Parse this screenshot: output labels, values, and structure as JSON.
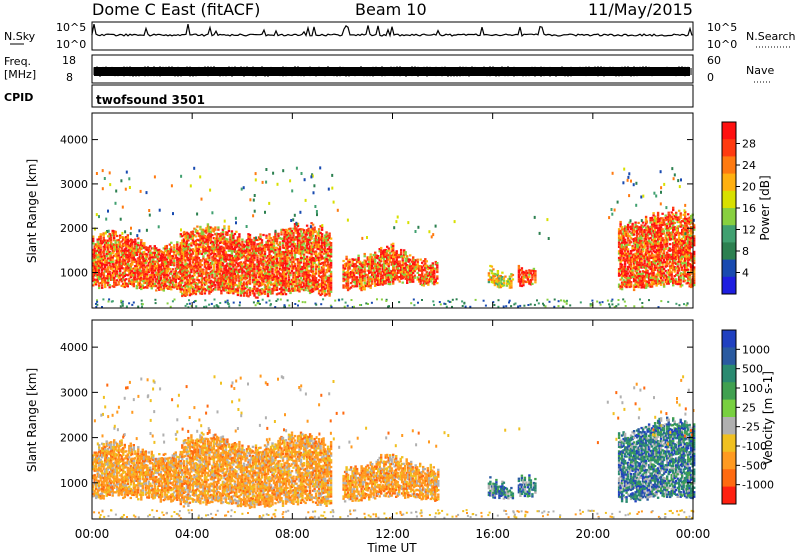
{
  "header": {
    "title": "Dome C East (fitACF)",
    "beam": "Beam 10",
    "date": "11/May/2015"
  },
  "panels": {
    "nsky": {
      "label": "N.Sky",
      "ticks": [
        "10^5",
        "10^0"
      ],
      "right_ticks": [
        "10^5",
        "10^0"
      ],
      "right_label": "N.Search"
    },
    "freq": {
      "label_top": "Freq.",
      "label_bottom": "[MHz]",
      "ticks": [
        "18",
        "8"
      ],
      "right_ticks": [
        "60",
        "0"
      ],
      "right_label": "Nave"
    },
    "cpid": {
      "label": "CPID",
      "value": "twofsound 3501"
    }
  },
  "power_scale": {
    "label": "Power [dB]",
    "ticks": [
      "28",
      "24",
      "20",
      "16",
      "12",
      "8",
      "4"
    ],
    "colors": [
      "#ff1010",
      "#ff3a10",
      "#ff7a10",
      "#ffb010",
      "#d8e000",
      "#88d040",
      "#40a070",
      "#2c8050",
      "#184ab0",
      "#1e1ee0"
    ]
  },
  "velocity_scale": {
    "label": "Velocity [m s-1]",
    "ticks": [
      "1000",
      "500",
      "100",
      "25",
      "-25",
      "-100",
      "-500",
      "-1000"
    ],
    "colors": [
      "#2040c0",
      "#2a5aa0",
      "#2a8a70",
      "#40a050",
      "#78d040",
      "#b0b0b0",
      "#f0c020",
      "#ff9a20",
      "#ff6a10",
      "#ff2010"
    ]
  },
  "chart_data": [
    {
      "type": "heatmap",
      "quantity": "power",
      "ylabel": "Slant Range [km]",
      "yticks": [
        1000,
        2000,
        3000,
        4000
      ],
      "ylim": [
        200,
        4600
      ],
      "xlim_hours": [
        0,
        24
      ],
      "regions": [
        {
          "t0": 0.0,
          "t1": 3.5,
          "r0": 600,
          "r1": 1800,
          "level": "high"
        },
        {
          "t0": 3.5,
          "t1": 9.5,
          "r0": 450,
          "r1": 2000,
          "level": "high"
        },
        {
          "t0": 10.0,
          "t1": 12.0,
          "r0": 600,
          "r1": 1500,
          "level": "high"
        },
        {
          "t0": 12.0,
          "t1": 13.8,
          "r0": 700,
          "r1": 1400,
          "level": "high"
        },
        {
          "t0": 15.8,
          "t1": 16.8,
          "r0": 600,
          "r1": 1000,
          "level": "medium"
        },
        {
          "t0": 17.0,
          "t1": 17.7,
          "r0": 700,
          "r1": 1300,
          "level": "high"
        },
        {
          "t0": 21.0,
          "t1": 24.0,
          "r0": 600,
          "r1": 2300,
          "level": "high"
        }
      ]
    },
    {
      "type": "heatmap",
      "quantity": "velocity",
      "ylabel": "Slant Range [km]",
      "yticks": [
        1000,
        2000,
        3000,
        4000
      ],
      "ylim": [
        200,
        4600
      ],
      "xlim_hours": [
        0,
        24
      ],
      "regions": [
        {
          "t0": 0.0,
          "t1": 3.5,
          "r0": 600,
          "r1": 1800,
          "level": "negative"
        },
        {
          "t0": 3.5,
          "t1": 9.5,
          "r0": 450,
          "r1": 2000,
          "level": "negative"
        },
        {
          "t0": 10.0,
          "t1": 13.8,
          "r0": 600,
          "r1": 1500,
          "level": "negative"
        },
        {
          "t0": 15.8,
          "t1": 16.8,
          "r0": 600,
          "r1": 1000,
          "level": "positive"
        },
        {
          "t0": 17.0,
          "t1": 17.7,
          "r0": 700,
          "r1": 1300,
          "level": "positive"
        },
        {
          "t0": 21.0,
          "t1": 24.0,
          "r0": 600,
          "r1": 2300,
          "level": "positive"
        }
      ]
    }
  ],
  "xaxis": {
    "label": "Time UT",
    "ticks": [
      "00:00",
      "04:00",
      "08:00",
      "12:00",
      "16:00",
      "20:00",
      "00:00"
    ]
  }
}
